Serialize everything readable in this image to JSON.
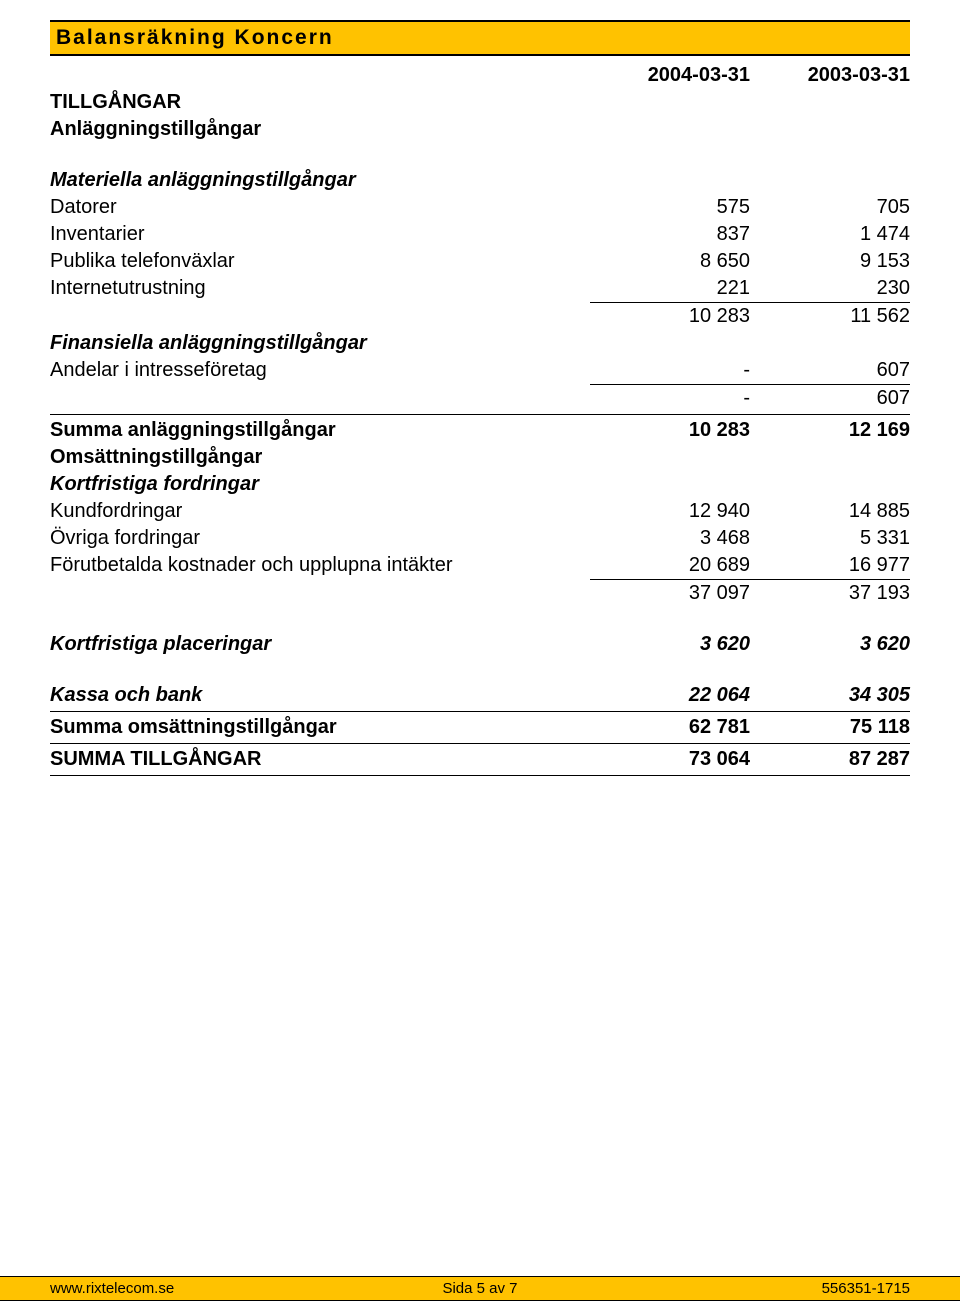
{
  "title": "Balansräkning Koncern",
  "colors": {
    "accent": "#ffc200",
    "text": "#000000",
    "background": "#ffffff",
    "border": "#000000"
  },
  "dates": {
    "col1": "2004-03-31",
    "col2": "2003-03-31"
  },
  "headings": {
    "assets": "TILLGÅNGAR",
    "fixed_assets": "Anläggningstillgångar",
    "tangible": "Materiella anläggningstillgångar",
    "financial": "Finansiella anläggningstillgångar",
    "sum_fixed": "Summa anläggningstillgångar",
    "current_assets": "Omsättningstillgångar",
    "short_receivables": "Kortfristiga fordringar",
    "short_investments": "Kortfristiga placeringar",
    "cash": "Kassa och bank",
    "sum_current": "Summa omsättningstillgångar",
    "total_assets": "SUMMA TILLGÅNGAR"
  },
  "rows": {
    "datorer": {
      "label": "Datorer",
      "c1": "575",
      "c2": "705"
    },
    "inventarier": {
      "label": "Inventarier",
      "c1": "837",
      "c2": "1 474"
    },
    "publika": {
      "label": "Publika telefonväxlar",
      "c1": "8 650",
      "c2": "9 153"
    },
    "internet": {
      "label": "Internetutrustning",
      "c1": "221",
      "c2": "230"
    },
    "tang_sub": {
      "c1": "10 283",
      "c2": "11 562"
    },
    "andelar": {
      "label": "Andelar i intresseföretag",
      "c1": "-",
      "c2": "607"
    },
    "fin_sub": {
      "c1": "-",
      "c2": "607"
    },
    "sum_fixed": {
      "c1": "10 283",
      "c2": "12 169"
    },
    "kundford": {
      "label": "Kundfordringar",
      "c1": "12 940",
      "c2": "14 885"
    },
    "ovriga": {
      "label": "Övriga fordringar",
      "c1": "3 468",
      "c2": "5 331"
    },
    "forut": {
      "label": "Förutbetalda kostnader och upplupna intäkter",
      "c1": "20 689",
      "c2": "16 977"
    },
    "recv_sub": {
      "c1": "37 097",
      "c2": "37 193"
    },
    "short_inv": {
      "c1": "3 620",
      "c2": "3 620"
    },
    "cash": {
      "c1": "22 064",
      "c2": "34 305"
    },
    "sum_current": {
      "c1": "62 781",
      "c2": "75 118"
    },
    "total": {
      "c1": "73 064",
      "c2": "87 287"
    }
  },
  "footer": {
    "left": "www.rixtelecom.se",
    "center": "Sida 5 av 7",
    "right": "556351-1715"
  }
}
